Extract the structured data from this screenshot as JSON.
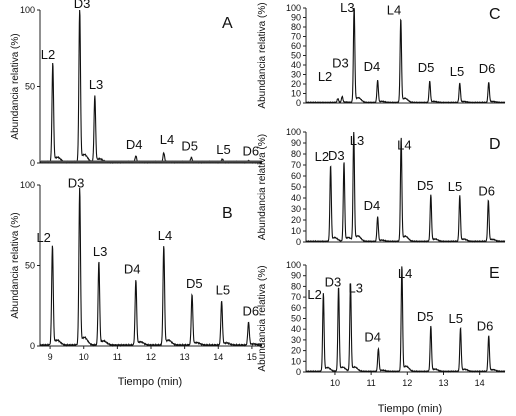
{
  "chart_data": [
    {
      "panel": "A",
      "type": "line",
      "ylabel": "Abundancia relativa (%)",
      "xlim": [
        8.7,
        15.3
      ],
      "ylim": [
        0,
        100
      ],
      "yticks": [
        "0",
        "50",
        "100"
      ],
      "baseline_color": "#4d4d4d",
      "peaks": [
        {
          "label": "L2",
          "x": 9.08,
          "y": 64
        },
        {
          "label": "D3",
          "x": 9.88,
          "y": 100
        },
        {
          "label": "L3",
          "x": 10.33,
          "y": 43
        },
        {
          "label": "D4",
          "x": 11.55,
          "y": 4
        },
        {
          "label": "L4",
          "x": 12.38,
          "y": 6
        },
        {
          "label": "D5",
          "x": 13.2,
          "y": 3
        },
        {
          "label": "L5",
          "x": 14.12,
          "y": 2
        },
        {
          "label": "D6",
          "x": 14.9,
          "y": 1
        }
      ]
    },
    {
      "panel": "B",
      "type": "line",
      "ylabel": "Abundancia relativa (%)",
      "xlabel": "Tiempo (min)",
      "xlim": [
        8.7,
        15.3
      ],
      "ylim": [
        0,
        100
      ],
      "xticks": [
        "9",
        "10",
        "11",
        "12",
        "13",
        "14",
        "15"
      ],
      "yticks": [
        "0",
        "50",
        "100"
      ],
      "peaks": [
        {
          "label": "L2",
          "x": 9.07,
          "y": 61
        },
        {
          "label": "D3",
          "x": 9.88,
          "y": 96
        },
        {
          "label": "L3",
          "x": 10.45,
          "y": 51
        },
        {
          "label": "D4",
          "x": 11.55,
          "y": 40
        },
        {
          "label": "L4",
          "x": 12.38,
          "y": 61
        },
        {
          "label": "D5",
          "x": 13.22,
          "y": 31
        },
        {
          "label": "L5",
          "x": 14.1,
          "y": 27
        },
        {
          "label": "D6",
          "x": 14.9,
          "y": 14
        }
      ]
    },
    {
      "panel": "C",
      "type": "line",
      "ylabel": "Abundancia relativa (%)",
      "xlim": [
        9.2,
        14.7
      ],
      "ylim": [
        0,
        100
      ],
      "yticks": [
        "0",
        "10",
        "20",
        "30",
        "40",
        "50",
        "60",
        "70",
        "80",
        "90",
        "100"
      ],
      "peaks": [
        {
          "label": "L2",
          "x": 10.08,
          "y": 4
        },
        {
          "label": "D3",
          "x": 10.2,
          "y": 6
        },
        {
          "label": "L3",
          "x": 10.53,
          "y": 100
        },
        {
          "label": "D4",
          "x": 11.18,
          "y": 23
        },
        {
          "label": "L4",
          "x": 11.82,
          "y": 87
        },
        {
          "label": "D5",
          "x": 12.62,
          "y": 22
        },
        {
          "label": "L5",
          "x": 13.45,
          "y": 20
        },
        {
          "label": "D6",
          "x": 14.25,
          "y": 21
        }
      ]
    },
    {
      "panel": "D",
      "type": "line",
      "ylabel": "Abundancia relativa (%)",
      "xlim": [
        9.2,
        14.7
      ],
      "ylim": [
        0,
        100
      ],
      "yticks": [
        "0",
        "10",
        "20",
        "30",
        "40",
        "50",
        "60",
        "70",
        "80",
        "90",
        "100"
      ],
      "peaks": [
        {
          "label": "L2",
          "x": 9.88,
          "y": 68
        },
        {
          "label": "D3",
          "x": 10.25,
          "y": 71
        },
        {
          "label": "L3",
          "x": 10.52,
          "y": 99
        },
        {
          "label": "D4",
          "x": 11.18,
          "y": 22
        },
        {
          "label": "L4",
          "x": 11.83,
          "y": 93
        },
        {
          "label": "D5",
          "x": 12.65,
          "y": 42
        },
        {
          "label": "L5",
          "x": 13.45,
          "y": 41
        },
        {
          "label": "D6",
          "x": 14.24,
          "y": 37
        }
      ]
    },
    {
      "panel": "E",
      "type": "line",
      "ylabel": "Abundancia relativa (%)",
      "xlabel": "Tiempo (min)",
      "xlim": [
        9.2,
        14.7
      ],
      "ylim": [
        0,
        100
      ],
      "xticks": [
        "10",
        "11",
        "12",
        "13",
        "14"
      ],
      "yticks": [
        "0",
        "10",
        "20",
        "30",
        "40",
        "50",
        "60",
        "70",
        "80",
        "90",
        "100"
      ],
      "peaks": [
        {
          "label": "L2",
          "x": 9.68,
          "y": 72
        },
        {
          "label": "D3",
          "x": 10.1,
          "y": 78
        },
        {
          "label": "L3",
          "x": 10.43,
          "y": 82
        },
        {
          "label": "D4",
          "x": 11.2,
          "y": 21
        },
        {
          "label": "L4",
          "x": 11.85,
          "y": 97
        },
        {
          "label": "D5",
          "x": 12.65,
          "y": 42
        },
        {
          "label": "L5",
          "x": 13.47,
          "y": 40
        },
        {
          "label": "D6",
          "x": 14.25,
          "y": 33
        }
      ]
    }
  ]
}
